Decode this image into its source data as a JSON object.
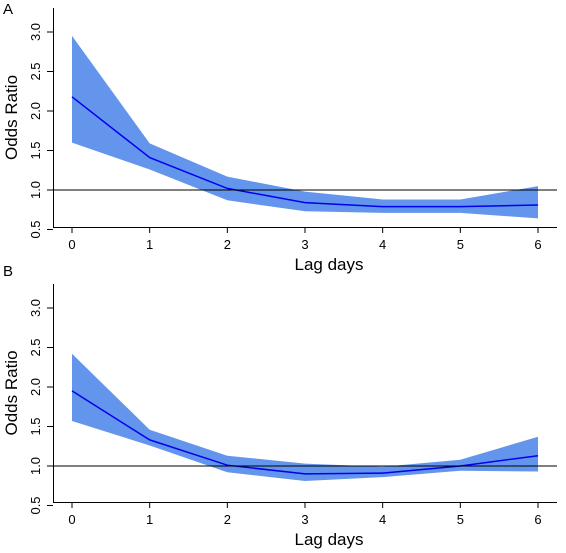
{
  "chart_data": [
    {
      "type": "line",
      "panel_label": "A",
      "xlabel": "Lag days",
      "ylabel": "Odds Ratio",
      "x": [
        0,
        1,
        2,
        3,
        4,
        5,
        6
      ],
      "xlim": [
        0,
        6
      ],
      "ylim": [
        0.5,
        3.0
      ],
      "x_ticks": [
        "0",
        "1",
        "2",
        "3",
        "4",
        "5",
        "6"
      ],
      "y_ticks": [
        "0.5",
        "1.0",
        "1.5",
        "2.0",
        "2.5",
        "3.0"
      ],
      "y_tick_values": [
        0.5,
        1.0,
        1.5,
        2.0,
        2.5,
        3.0
      ],
      "reference_line": 1.0,
      "series": [
        {
          "values": [
            2.18,
            1.41,
            1.02,
            0.84,
            0.79,
            0.79,
            0.81
          ],
          "lower": [
            1.6,
            1.26,
            0.87,
            0.73,
            0.71,
            0.71,
            0.64
          ],
          "upper": [
            2.95,
            1.59,
            1.17,
            0.98,
            0.88,
            0.88,
            1.05
          ],
          "line_color": "#0000ee",
          "band_color": "#6495ed"
        }
      ],
      "grid": false,
      "legend": "none"
    },
    {
      "type": "line",
      "panel_label": "B",
      "xlabel": "Lag days",
      "ylabel": "Odds Ratio",
      "x": [
        0,
        1,
        2,
        3,
        4,
        5,
        6
      ],
      "xlim": [
        0,
        6
      ],
      "ylim": [
        0.5,
        3.0
      ],
      "x_ticks": [
        "0",
        "1",
        "2",
        "3",
        "4",
        "5",
        "6"
      ],
      "y_ticks": [
        "0.5",
        "1.0",
        "1.5",
        "2.0",
        "2.5",
        "3.0"
      ],
      "y_tick_values": [
        0.5,
        1.0,
        1.5,
        2.0,
        2.5,
        3.0
      ],
      "reference_line": 1.0,
      "series": [
        {
          "values": [
            1.95,
            1.33,
            1.01,
            0.9,
            0.91,
            1.0,
            1.13
          ],
          "lower": [
            1.57,
            1.26,
            0.92,
            0.81,
            0.86,
            0.94,
            0.93
          ],
          "upper": [
            2.42,
            1.46,
            1.13,
            1.03,
            0.99,
            1.08,
            1.37
          ],
          "line_color": "#0000ee",
          "band_color": "#6495ed"
        }
      ],
      "grid": false,
      "legend": "none"
    }
  ]
}
